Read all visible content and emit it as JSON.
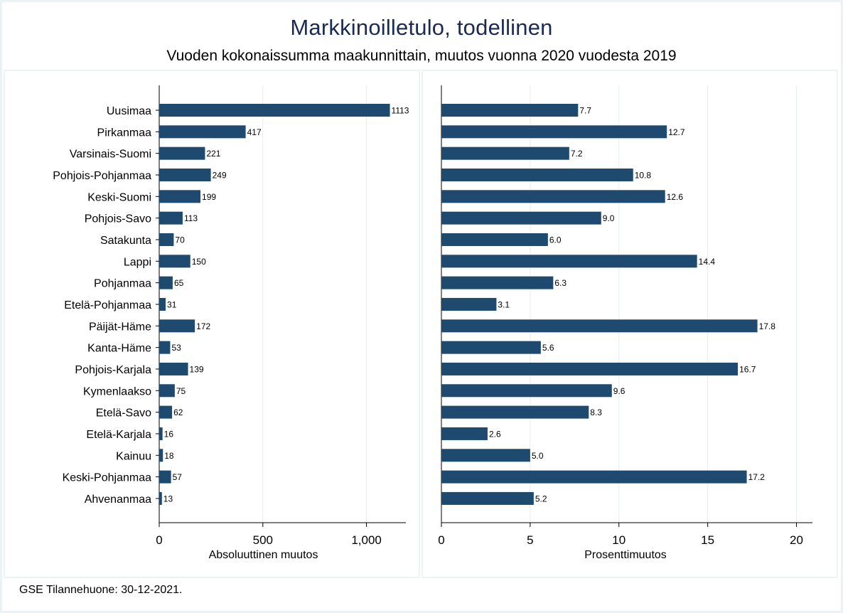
{
  "title": "Markkinoilletulo, todellinen",
  "subtitle": "Vuoden kokonaissumma maakunnittain, muutos vuonna 2020 vuodesta 2019",
  "source_note": "GSE Tilannehuone: 30-12-2021.",
  "colors": {
    "bar": "#1f4a70",
    "title": "#1a2a55",
    "grid": "#e6ecef",
    "panel_border": "#e8f0f2"
  },
  "chart_data": [
    {
      "type": "bar",
      "orientation": "horizontal",
      "xlabel": "Absoluuttinen muutos",
      "xlim": [
        0,
        1190
      ],
      "xticks": [
        0,
        500,
        1000
      ],
      "xtick_labels": [
        "0",
        "500",
        "1,000"
      ],
      "grid": true,
      "categories": [
        "Uusimaa",
        "Pirkanmaa",
        "Varsinais-Suomi",
        "Pohjois-Pohjanmaa",
        "Keski-Suomi",
        "Pohjois-Savo",
        "Satakunta",
        "Lappi",
        "Pohjanmaa",
        "Etelä-Pohjanmaa",
        "Päijät-Häme",
        "Kanta-Häme",
        "Pohjois-Karjala",
        "Kymenlaakso",
        "Etelä-Savo",
        "Etelä-Karjala",
        "Kainuu",
        "Keski-Pohjanmaa",
        "Ahvenanmaa"
      ],
      "values": [
        1113,
        417,
        221,
        249,
        199,
        113,
        70,
        150,
        65,
        31,
        172,
        53,
        139,
        75,
        62,
        16,
        18,
        57,
        13
      ],
      "value_labels": [
        "1113",
        "417",
        "221",
        "249",
        "199",
        "113",
        "70",
        "150",
        "65",
        "31",
        "172",
        "53",
        "139",
        "75",
        "62",
        "16",
        "18",
        "57",
        "13"
      ]
    },
    {
      "type": "bar",
      "orientation": "horizontal",
      "xlabel": "Prosenttimuutos",
      "xlim": [
        0,
        20.9
      ],
      "xticks": [
        0,
        5,
        10,
        15,
        20
      ],
      "xtick_labels": [
        "0",
        "5",
        "10",
        "15",
        "20"
      ],
      "grid": true,
      "categories": [
        "Uusimaa",
        "Pirkanmaa",
        "Varsinais-Suomi",
        "Pohjois-Pohjanmaa",
        "Keski-Suomi",
        "Pohjois-Savo",
        "Satakunta",
        "Lappi",
        "Pohjanmaa",
        "Etelä-Pohjanmaa",
        "Päijät-Häme",
        "Kanta-Häme",
        "Pohjois-Karjala",
        "Kymenlaakso",
        "Etelä-Savo",
        "Etelä-Karjala",
        "Kainuu",
        "Keski-Pohjanmaa",
        "Ahvenanmaa"
      ],
      "values": [
        7.7,
        12.7,
        7.2,
        10.8,
        12.6,
        9.0,
        6.0,
        14.4,
        6.3,
        3.1,
        17.8,
        5.6,
        16.7,
        9.6,
        8.3,
        2.6,
        5.0,
        17.2,
        5.2
      ],
      "value_labels": [
        "7.7",
        "12.7",
        "7.2",
        "10.8",
        "12.6",
        "9.0",
        "6.0",
        "14.4",
        "6.3",
        "3.1",
        "17.8",
        "5.6",
        "16.7",
        "9.6",
        "8.3",
        "2.6",
        "5.0",
        "17.2",
        "5.2"
      ]
    }
  ]
}
